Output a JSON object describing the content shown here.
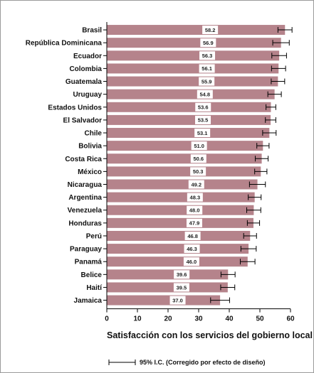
{
  "chart_data": {
    "type": "bar",
    "orientation": "horizontal",
    "categories": [
      "Brasil",
      "República Dominicana",
      "Ecuador",
      "Colombia",
      "Guatemala",
      "Uruguay",
      "Estados Unidos",
      "El Salvador",
      "Chile",
      "Bolivia",
      "Costa Rica",
      "México",
      "Nicaragua",
      "Argentina",
      "Venezuela",
      "Honduras",
      "Perú",
      "Paraguay",
      "Panamá",
      "Belice",
      "Haití",
      "Jamaica"
    ],
    "values": [
      58.2,
      56.9,
      56.3,
      56.1,
      55.9,
      54.8,
      53.6,
      53.5,
      53.1,
      51.0,
      50.6,
      50.3,
      49.2,
      48.3,
      48.0,
      47.9,
      46.8,
      46.3,
      46.0,
      39.6,
      39.5,
      37.0
    ],
    "value_labels": [
      "58.2",
      "56.9",
      "56.3",
      "56.1",
      "55.9",
      "54.8",
      "53.6",
      "53.5",
      "53.1",
      "51.0",
      "50.6",
      "50.3",
      "49.2",
      "48.3",
      "48.0",
      "47.9",
      "46.8",
      "46.3",
      "46.0",
      "39.6",
      "39.5",
      "37.0"
    ],
    "ci_low": [
      55.9,
      54.2,
      53.9,
      53.8,
      53.7,
      52.6,
      52.0,
      51.8,
      50.9,
      49.0,
      48.5,
      48.3,
      46.6,
      46.2,
      45.7,
      45.9,
      44.7,
      43.8,
      43.6,
      37.3,
      37.2,
      33.9
    ],
    "ci_high": [
      60.5,
      59.6,
      58.7,
      58.4,
      58.1,
      57.0,
      55.2,
      55.2,
      55.3,
      53.0,
      52.7,
      52.3,
      51.8,
      50.4,
      50.3,
      49.9,
      48.9,
      48.8,
      48.4,
      41.9,
      41.8,
      40.1
    ],
    "xlabel": "Satisfacción con los servicios del gobierno local",
    "xlim": [
      0,
      60
    ],
    "xticks": [
      0,
      10,
      20,
      30,
      40,
      50,
      60
    ],
    "grid": false,
    "legend": {
      "text": "95% I.C. (Corregido por efecto de diseño)",
      "placement": "bottom-right"
    },
    "colors": {
      "bar": "#b5838b",
      "label_bg": "#ffffff",
      "error_bar": "#000000"
    }
  }
}
